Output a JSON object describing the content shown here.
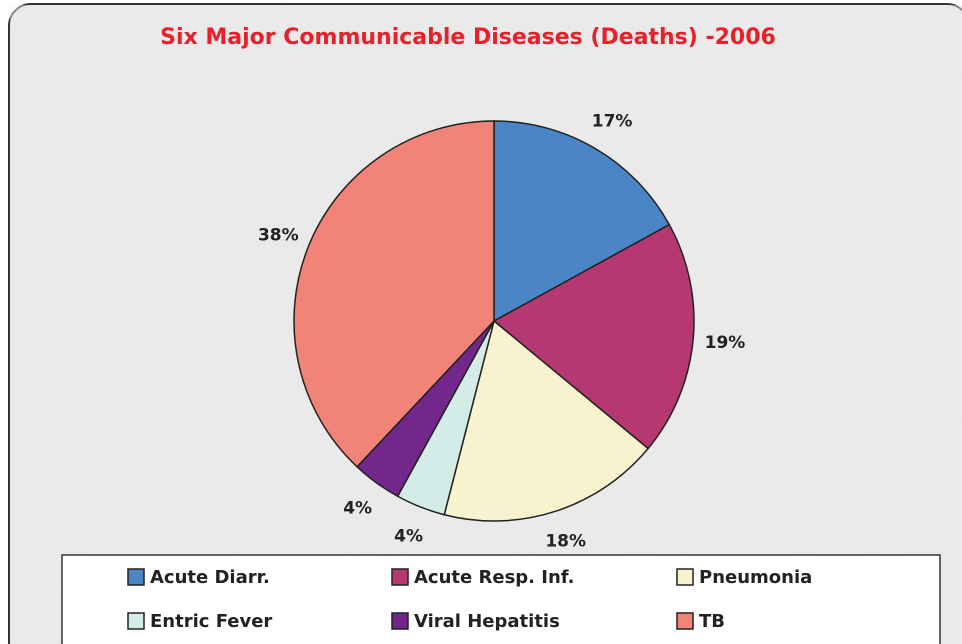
{
  "chart_data": {
    "type": "pie",
    "title": "Six Major Communicable Diseases (Deaths) -2006",
    "categories": [
      "Acute Diarr.",
      "Acute Resp. Inf.",
      "Pneumonia",
      "Entric Fever",
      "Viral Hepatitis",
      "TB"
    ],
    "values": [
      17,
      19,
      18,
      4,
      4,
      38
    ],
    "value_labels": [
      "17%",
      "19%",
      "18%",
      "4%",
      "4%",
      "38%"
    ],
    "colors": [
      "#4a86c5",
      "#b53872",
      "#f8f2cf",
      "#d4ece8",
      "#74278b",
      "#f28378"
    ],
    "legend": "bottom"
  }
}
